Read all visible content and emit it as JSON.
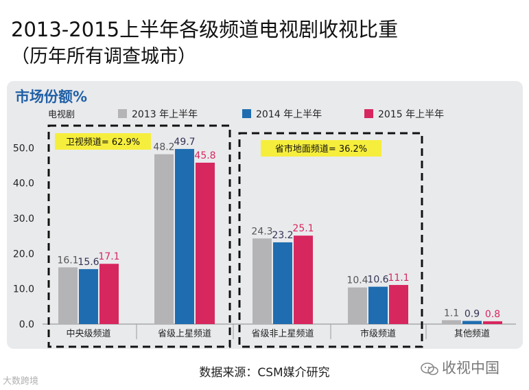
{
  "title_line1": "2013-2015上半年各级频道电视剧收视比重",
  "title_line2": "（历年所有调查城市）",
  "source": "数据来源：CSM媒介研究",
  "watermark_left": "大数跨境",
  "watermark_right": "收视中国",
  "chart_data": {
    "type": "bar",
    "title": "市场份额%",
    "subtitle": "电视剧",
    "categories": [
      "中央级频道",
      "省级上星频道",
      "省级非上星频道",
      "市级频道",
      "其他频道"
    ],
    "series": [
      {
        "name": "2013 年上半年",
        "color": "#b4b4b7",
        "values": [
          16.1,
          48.2,
          24.3,
          10.4,
          1.1
        ]
      },
      {
        "name": "2014 年上半年",
        "color": "#1f6db0",
        "values": [
          15.6,
          49.7,
          23.2,
          10.6,
          0.9
        ]
      },
      {
        "name": "2015 年上半年",
        "color": "#d7275f",
        "values": [
          17.1,
          45.8,
          25.1,
          11.1,
          0.8
        ]
      }
    ],
    "label_colors": [
      "#555555",
      "#333355",
      "#d7275f"
    ],
    "yticks": [
      "0.0",
      "10.0",
      "20.0",
      "30.0",
      "40.0",
      "50.0"
    ],
    "ylim": [
      0,
      53
    ],
    "legend_position": "top",
    "annotations": [
      {
        "text": "卫视频道= 62.9%",
        "categories": [
          "中央级频道",
          "省级上星频道"
        ]
      },
      {
        "text": "省市地面频道= 36.2%",
        "categories": [
          "省级非上星频道",
          "市级频道"
        ]
      }
    ]
  }
}
